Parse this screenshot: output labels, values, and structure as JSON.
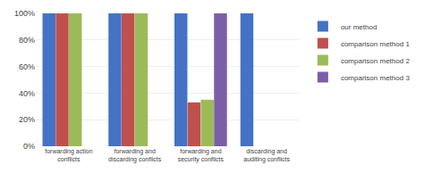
{
  "chart_data": {
    "type": "bar",
    "categories": [
      "forwarding action\nconflicts",
      "forwarding and\ndiscarding conflicts",
      "forwarding and\nsecurity conflicts",
      "discarding and\nauditing conflicts"
    ],
    "series": [
      {
        "name": "our method",
        "color": "#4472C4",
        "values": [
          100,
          100,
          100,
          100
        ]
      },
      {
        "name": "comparison method 1",
        "color": "#C0504D",
        "values": [
          100,
          100,
          33,
          0
        ]
      },
      {
        "name": "comparison method 2",
        "color": "#9BBB59",
        "values": [
          100,
          100,
          35,
          0
        ]
      },
      {
        "name": "comparison method 3",
        "color": "#7B5EA7",
        "values": [
          0,
          0,
          100,
          0
        ]
      }
    ],
    "ylim": [
      0,
      100
    ],
    "yticks": [
      {
        "value": 0,
        "label": "0%"
      },
      {
        "value": 20,
        "label": "20%"
      },
      {
        "value": 40,
        "label": "40%"
      },
      {
        "value": 60,
        "label": "60%"
      },
      {
        "value": 80,
        "label": "80%"
      },
      {
        "value": 100,
        "label": "100%"
      }
    ],
    "grid": true,
    "legend": "right"
  }
}
